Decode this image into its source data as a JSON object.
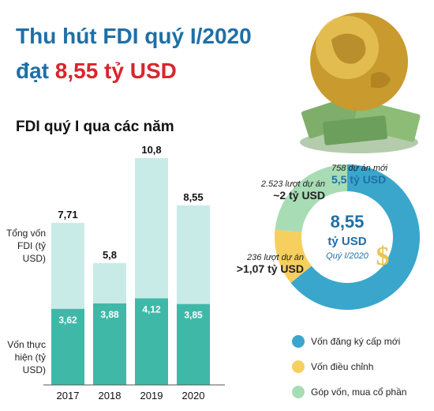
{
  "header": {
    "title_line1": "Thu hút FDI quý I/2020",
    "title_line2_prefix": "đạt ",
    "title_line2_highlight": "8,55 tỷ USD"
  },
  "chart_data": [
    {
      "type": "bar",
      "title": "FDI quý I qua các năm",
      "categories": [
        "2017",
        "2018",
        "2019",
        "2020"
      ],
      "series": [
        {
          "name": "Tổng vốn FDI (tỷ USD)",
          "values": [
            7.71,
            5.8,
            10.8,
            8.55
          ],
          "labels": [
            "7,71",
            "5,8",
            "10,8",
            "8,55"
          ],
          "color": "#c8ebe8"
        },
        {
          "name": "Vốn thực hiện (tỷ USD)",
          "values": [
            3.62,
            3.88,
            4.12,
            3.85
          ],
          "labels": [
            "3,62",
            "3,88",
            "4,12",
            "3,85"
          ],
          "color": "#3fb8a8"
        }
      ],
      "ylabel_total": "Tổng vốn FDI (tỷ USD)",
      "ylabel_disbursed": "Vốn thực hiện (tỷ USD)",
      "ylim": [
        0,
        10.8
      ],
      "grid": false
    },
    {
      "type": "pie",
      "variant": "donut",
      "center_value": "8,55",
      "center_unit": "tỷ USD",
      "center_caption": "Quý I/2020",
      "slices": [
        {
          "name": "Vốn đăng ký cấp mới",
          "value": 5.5,
          "color": "#3aa6cc",
          "projects": "758 dự án mới",
          "value_label": "5,5 tỷ USD"
        },
        {
          "name": "Vốn điều chỉnh",
          "value": 1.07,
          "color": "#f7cf5f",
          "projects": "236 lượt dự án",
          "value_label": ">1,07 tỷ USD"
        },
        {
          "name": "Góp vốn, mua cổ phần",
          "value": 2.0,
          "color": "#a8dcb5",
          "projects": "2.523 lượt dự án",
          "value_label": "~2 tỷ USD"
        }
      ]
    }
  ],
  "icons": {
    "globe": "globe-money-icon",
    "dollar": "dollar-sign-icon"
  }
}
